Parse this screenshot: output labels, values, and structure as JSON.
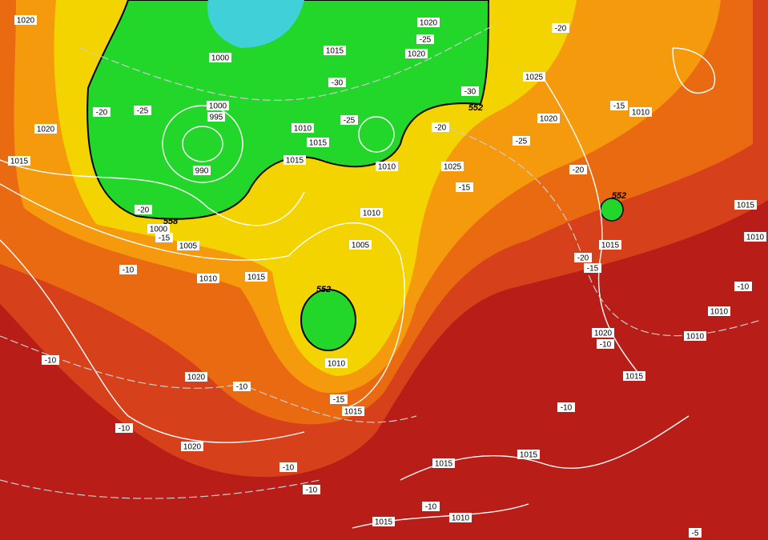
{
  "isobar_labels": [
    "1020",
    "1020",
    "1020",
    "1000",
    "1015",
    "1025",
    "1000",
    "995",
    "1010",
    "1015",
    "1015",
    "990",
    "1010",
    "1025",
    "1020",
    "1010",
    "1020",
    "1015",
    "1010",
    "1005",
    "1005",
    "1000",
    "1010",
    "1015",
    "1015",
    "1015",
    "1010",
    "1010",
    "1010",
    "1020",
    "1015",
    "1010",
    "1015",
    "1020",
    "1020",
    "1015",
    "1015",
    "1010",
    "1015"
  ],
  "temperature_labels": [
    "-20",
    "-25",
    "-25",
    "-30",
    "-25",
    "-20",
    "-30",
    "-20",
    "-15",
    "-25",
    "-20",
    "-15",
    "-20",
    "-15",
    "-10",
    "-20",
    "-15",
    "-10",
    "-10",
    "-10",
    "-10",
    "-15",
    "-10",
    "-10",
    "-10",
    "-10",
    "-10",
    "-5"
  ],
  "height_labels": [
    "552",
    "558",
    "552",
    "552"
  ]
}
